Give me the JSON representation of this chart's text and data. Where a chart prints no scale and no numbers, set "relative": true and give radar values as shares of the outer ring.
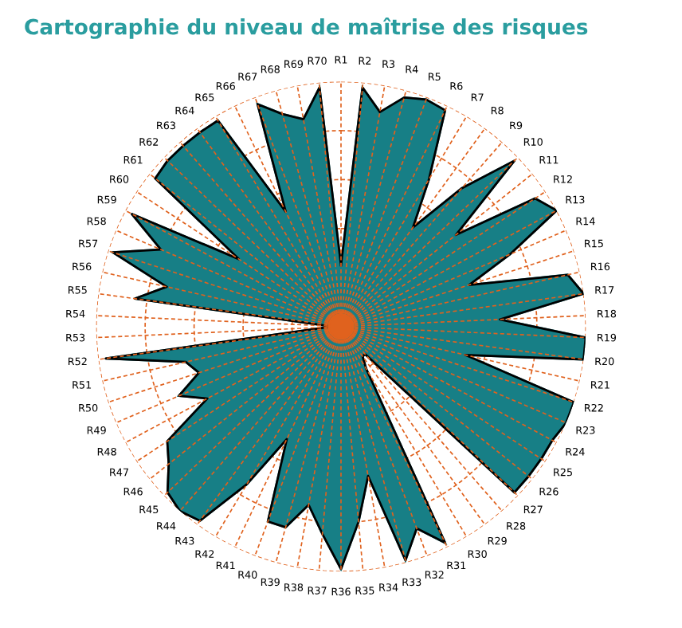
{
  "chart_data": {
    "type": "radar",
    "title": "Cartographie du niveau de maîtrise des risques",
    "relative": true,
    "grid": true,
    "categories": [
      "R1",
      "R2",
      "R3",
      "R4",
      "R5",
      "R6",
      "R7",
      "R8",
      "R9",
      "R10",
      "R11",
      "R12",
      "R13",
      "R14",
      "R15",
      "R16",
      "R17",
      "R18",
      "R19",
      "R20",
      "R21",
      "R22",
      "R23",
      "R24",
      "R25",
      "R26",
      "R27",
      "R28",
      "R29",
      "R30",
      "R31",
      "R32",
      "R33",
      "R34",
      "R35",
      "R36",
      "R37",
      "R38",
      "R39",
      "R40",
      "R41",
      "R42",
      "R43",
      "R44",
      "R45",
      "R46",
      "R47",
      "R48",
      "R49",
      "R50",
      "R51",
      "R52",
      "R53",
      "R54",
      "R55",
      "R56",
      "R57",
      "R58",
      "R59",
      "R60",
      "R61",
      "R62",
      "R63",
      "R64",
      "R65",
      "R66",
      "R67",
      "R68",
      "R69",
      "R70"
    ],
    "series": [
      {
        "color": "#177f86",
        "values": [
          0.25,
          0.98,
          0.89,
          0.97,
          0.99,
          0.98,
          0.7,
          0.5,
          0.75,
          0.98,
          0.6,
          0.95,
          1.0,
          0.75,
          0.55,
          0.95,
          1.0,
          0.65,
          1.0,
          1.0,
          0.52,
          1.0,
          1.0,
          0.98,
          0.98,
          0.98,
          0.98,
          0.15,
          0.15,
          0.2,
          0.98,
          0.88,
          0.99,
          0.62,
          0.8,
          0.99,
          0.85,
          0.74,
          0.85,
          0.85,
          0.51,
          0.75,
          0.98,
          1.0,
          0.98,
          0.9,
          0.85,
          0.62,
          0.72,
          0.61,
          0.65,
          0.97,
          0.05,
          0.05,
          0.85,
          0.73,
          0.98,
          0.8,
          0.97,
          0.5,
          0.97,
          0.98,
          0.98,
          0.98,
          0.98,
          0.52,
          0.97,
          0.9,
          0.86,
          0.98
        ]
      }
    ]
  }
}
